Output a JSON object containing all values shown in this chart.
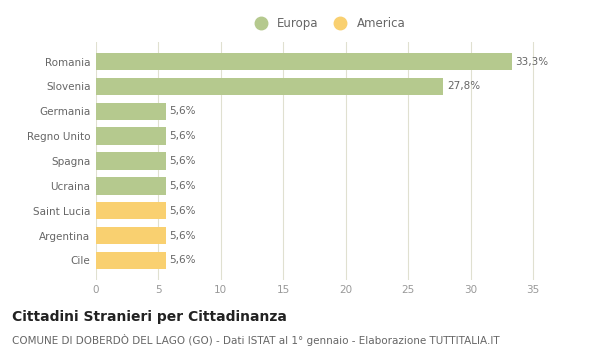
{
  "categories": [
    "Romania",
    "Slovenia",
    "Germania",
    "Regno Unito",
    "Spagna",
    "Ucraina",
    "Saint Lucia",
    "Argentina",
    "Cile"
  ],
  "values": [
    33.3,
    27.8,
    5.6,
    5.6,
    5.6,
    5.6,
    5.6,
    5.6,
    5.6
  ],
  "labels": [
    "33,3%",
    "27,8%",
    "5,6%",
    "5,6%",
    "5,6%",
    "5,6%",
    "5,6%",
    "5,6%",
    "5,6%"
  ],
  "colors": [
    "#b5c98e",
    "#b5c98e",
    "#b5c98e",
    "#b5c98e",
    "#b5c98e",
    "#b5c98e",
    "#f9d070",
    "#f9d070",
    "#f9d070"
  ],
  "europa_color": "#b5c98e",
  "america_color": "#f9d070",
  "background_color": "#ffffff",
  "grid_color": "#e0e0d0",
  "xlim": [
    0,
    37
  ],
  "xticks": [
    0,
    5,
    10,
    15,
    20,
    25,
    30,
    35
  ],
  "title": "Cittadini Stranieri per Cittadinanza",
  "subtitle": "COMUNE DI DOBERDÒ DEL LAGO (GO) - Dati ISTAT al 1° gennaio - Elaborazione TUTTITALIA.IT",
  "legend_europa": "Europa",
  "legend_america": "America",
  "title_fontsize": 10,
  "subtitle_fontsize": 7.5,
  "label_fontsize": 7.5,
  "tick_fontsize": 7.5,
  "legend_fontsize": 8.5
}
